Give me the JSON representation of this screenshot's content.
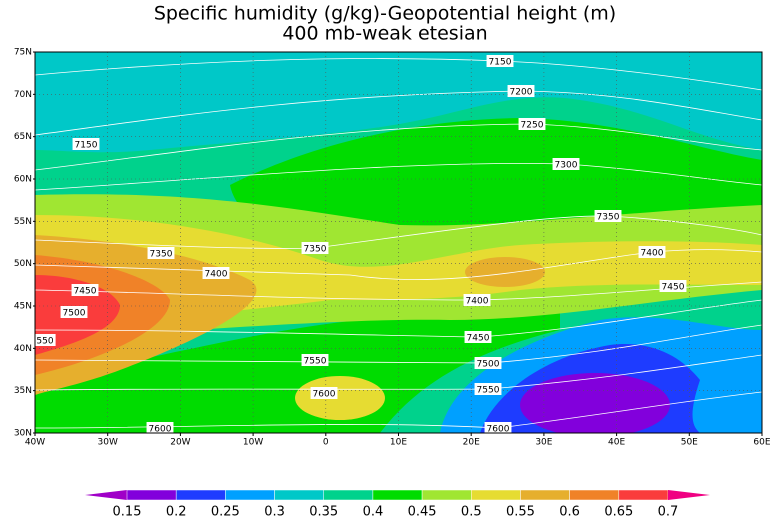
{
  "chart_data": {
    "type": "contour",
    "title": "Specific humidity (g/kg)-Geopotential height (m)",
    "subtitle": "400 mb-weak etesian",
    "xlim": [
      -40,
      60
    ],
    "ylim": [
      30,
      75
    ],
    "xticks": [
      {
        "value": -40,
        "label": "40W"
      },
      {
        "value": -30,
        "label": "30W"
      },
      {
        "value": -20,
        "label": "20W"
      },
      {
        "value": -10,
        "label": "10W"
      },
      0,
      {
        "value": 10,
        "label": "10E"
      },
      {
        "value": 20,
        "label": "20E"
      },
      {
        "value": 30,
        "label": "30E"
      },
      {
        "value": 40,
        "label": "40E"
      },
      {
        "value": 50,
        "label": "50E"
      },
      {
        "value": 60,
        "label": "60E"
      }
    ],
    "yticks": [
      {
        "value": 30,
        "label": "30N"
      },
      {
        "value": 35,
        "label": "35N"
      },
      {
        "value": 40,
        "label": "40N"
      },
      {
        "value": 45,
        "label": "45N"
      },
      {
        "value": 50,
        "label": "50N"
      },
      {
        "value": 55,
        "label": "55N"
      },
      {
        "value": 60,
        "label": "60N"
      },
      {
        "value": 65,
        "label": "65N"
      },
      {
        "value": 70,
        "label": "70N"
      },
      {
        "value": 75,
        "label": "75N"
      }
    ],
    "grid": true,
    "contour_labels": [
      "7150",
      "7200",
      "7250",
      "7300",
      "7150",
      "7350",
      "7350",
      "7350",
      "7400",
      "7400",
      "7450",
      "7500",
      "550",
      "7450",
      "7400",
      "7450",
      "7500",
      "7550",
      "7550",
      "7600",
      "7600",
      "7600"
    ],
    "colorbar": {
      "levels": [
        0.15,
        0.2,
        0.25,
        0.3,
        0.35,
        0.4,
        0.45,
        0.5,
        0.55,
        0.6,
        0.65,
        0.7
      ],
      "colors": [
        "#a000c8",
        "#8200dc",
        "#1e3cff",
        "#00a0ff",
        "#00c8c8",
        "#00d28c",
        "#00dc00",
        "#a0e632",
        "#e6dc32",
        "#e6af2d",
        "#f08228",
        "#fa3c3c",
        "#f00082"
      ]
    }
  }
}
